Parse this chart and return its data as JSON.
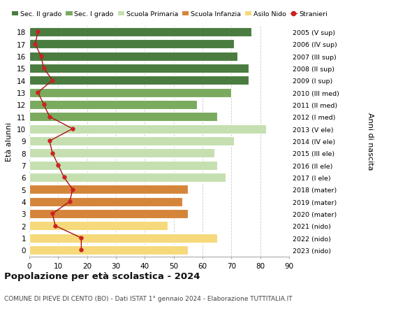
{
  "ages": [
    18,
    17,
    16,
    15,
    14,
    13,
    12,
    11,
    10,
    9,
    8,
    7,
    6,
    5,
    4,
    3,
    2,
    1,
    0
  ],
  "bar_values": [
    77,
    71,
    72,
    76,
    76,
    70,
    58,
    65,
    82,
    71,
    64,
    65,
    68,
    55,
    53,
    55,
    48,
    65,
    55
  ],
  "bar_colors": [
    "#4a7c40",
    "#4a7c40",
    "#4a7c40",
    "#4a7c40",
    "#4a7c40",
    "#7aaa5e",
    "#7aaa5e",
    "#7aaa5e",
    "#c5dfb0",
    "#c5dfb0",
    "#c5dfb0",
    "#c5dfb0",
    "#c5dfb0",
    "#d4853a",
    "#d4853a",
    "#d4853a",
    "#f5d97a",
    "#f5d97a",
    "#f5d97a"
  ],
  "right_labels": [
    "2005 (V sup)",
    "2006 (IV sup)",
    "2007 (III sup)",
    "2008 (II sup)",
    "2009 (I sup)",
    "2010 (III med)",
    "2011 (II med)",
    "2012 (I med)",
    "2013 (V ele)",
    "2014 (IV ele)",
    "2015 (III ele)",
    "2016 (II ele)",
    "2017 (I ele)",
    "2018 (mater)",
    "2019 (mater)",
    "2020 (mater)",
    "2021 (nido)",
    "2022 (nido)",
    "2023 (nido)"
  ],
  "stranieri_values": [
    3,
    2,
    4,
    5,
    8,
    3,
    5,
    7,
    15,
    7,
    8,
    10,
    12,
    15,
    14,
    8,
    9,
    18,
    18
  ],
  "legend_labels": [
    "Sec. II grado",
    "Sec. I grado",
    "Scuola Primaria",
    "Scuola Infanzia",
    "Asilo Nido",
    "Stranieri"
  ],
  "legend_colors": [
    "#4a7c40",
    "#7aaa5e",
    "#c5dfb0",
    "#d4853a",
    "#f5d97a",
    "#cc2222"
  ],
  "ylabel_left": "Età alunni",
  "ylabel_right": "Anni di nascita",
  "title": "Popolazione per età scolastica - 2024",
  "subtitle": "COMUNE DI PIEVE DI CENTO (BO) - Dati ISTAT 1° gennaio 2024 - Elaborazione TUTTITALIA.IT",
  "xlim": [
    0,
    90
  ],
  "xticks": [
    0,
    10,
    20,
    30,
    40,
    50,
    60,
    70,
    80,
    90
  ],
  "bg_color": "#ffffff",
  "bar_height": 0.75
}
